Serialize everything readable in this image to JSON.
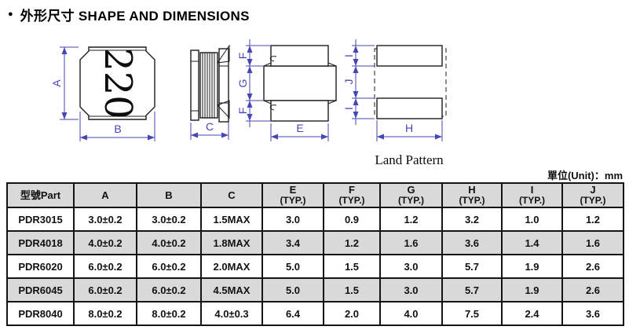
{
  "page": {
    "title_bullet": "●",
    "title": "外形尺寸 SHAPE AND DIMENSIONS",
    "unit_label": "單位(Unit)：mm"
  },
  "colors": {
    "dimension_blue": "#4646b4",
    "drawing_ink": "#1c1c1c",
    "row_shade": "#d9d9d9"
  },
  "drawings": {
    "top_view": {
      "marking": "220",
      "height_label": "A",
      "width_label": "B"
    },
    "side_view": {
      "width_label": "C"
    },
    "front_view": {
      "electrode_label_top": "F",
      "body_label": "G",
      "electrode_label_bottom": "F",
      "width_label": "E"
    },
    "land_pattern": {
      "caption": "Land Pattern",
      "pad_label_top": "I",
      "gap_label": "J",
      "pad_label_bottom": "I",
      "width_label": "H"
    }
  },
  "table": {
    "headers": [
      {
        "label": "型號Part",
        "sub": ""
      },
      {
        "label": "A",
        "sub": ""
      },
      {
        "label": "B",
        "sub": ""
      },
      {
        "label": "C",
        "sub": ""
      },
      {
        "label": "E",
        "sub": "(TYP.)"
      },
      {
        "label": "F",
        "sub": "(TYP.)"
      },
      {
        "label": "G",
        "sub": "(TYP.)"
      },
      {
        "label": "H",
        "sub": "(TYP.)"
      },
      {
        "label": "I",
        "sub": "(TYP.)"
      },
      {
        "label": "J",
        "sub": "(TYP.)"
      }
    ],
    "rows": [
      {
        "part": "PDR3015",
        "shaded": false,
        "values": [
          "3.0±0.2",
          "3.0±0.2",
          "1.5MAX",
          "3.0",
          "0.9",
          "1.2",
          "3.2",
          "1.0",
          "1.2"
        ]
      },
      {
        "part": "PDR4018",
        "shaded": true,
        "values": [
          "4.0±0.2",
          "4.0±0.2",
          "1.8MAX",
          "3.4",
          "1.2",
          "1.6",
          "3.6",
          "1.4",
          "1.6"
        ]
      },
      {
        "part": "PDR6020",
        "shaded": false,
        "values": [
          "6.0±0.2",
          "6.0±0.2",
          "2.0MAX",
          "5.0",
          "1.5",
          "3.0",
          "5.7",
          "1.9",
          "2.6"
        ]
      },
      {
        "part": "PDR6045",
        "shaded": true,
        "values": [
          "6.0±0.2",
          "6.0±0.2",
          "4.5MAX",
          "5.0",
          "1.5",
          "3.0",
          "5.7",
          "1.9",
          "2.6"
        ]
      },
      {
        "part": "PDR8040",
        "shaded": false,
        "values": [
          "8.0±0.2",
          "8.0±0.2",
          "4.0±0.3",
          "6.4",
          "2.0",
          "4.0",
          "7.5",
          "2.4",
          "3.6"
        ]
      }
    ]
  }
}
